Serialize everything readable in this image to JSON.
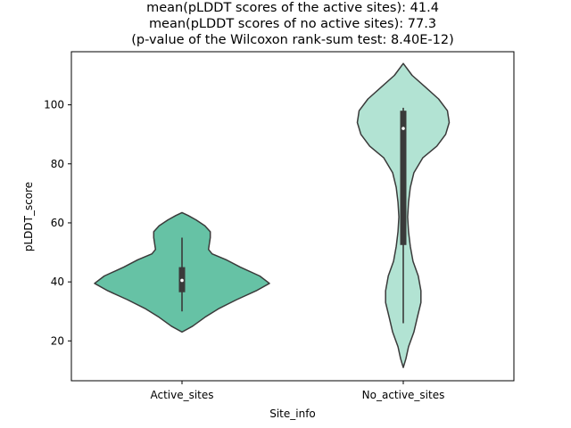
{
  "chart_data": {
    "type": "violin",
    "title_lines": [
      "mean(pLDDT scores of the active sites): 41.4",
      "mean(pLDDT scores of no active sites): 77.3",
      "(p-value of the Wilcoxon rank-sum test: 8.40E-12)"
    ],
    "xlabel": "Site_info",
    "ylabel": "pLDDT_score",
    "categories": [
      "Active_sites",
      "No_active_sites"
    ],
    "ylim": [
      6.5,
      118
    ],
    "yticks": [
      20,
      40,
      60,
      80,
      100
    ],
    "grid": false,
    "colors": {
      "Active_sites": "#66c2a5",
      "No_active_sites": "#b2e3d3",
      "edge": "#3a3a3a"
    },
    "violins": [
      {
        "name": "Active_sites",
        "min": 30,
        "q1": 36.5,
        "median": 40.5,
        "q3": 45,
        "max": 55,
        "density": [
          [
            23,
            0
          ],
          [
            25,
            0.12
          ],
          [
            28,
            0.26
          ],
          [
            31,
            0.42
          ],
          [
            34,
            0.62
          ],
          [
            37,
            0.84
          ],
          [
            39.5,
            0.99
          ],
          [
            42,
            0.88
          ],
          [
            45,
            0.66
          ],
          [
            47.5,
            0.5
          ],
          [
            49.5,
            0.34
          ],
          [
            51,
            0.3
          ],
          [
            53,
            0.31
          ],
          [
            55,
            0.32
          ],
          [
            57,
            0.32
          ],
          [
            59,
            0.26
          ],
          [
            61,
            0.16
          ],
          [
            62.5,
            0.07
          ],
          [
            63.5,
            0
          ]
        ]
      },
      {
        "name": "No_active_sites",
        "min": 26,
        "q1": 52.5,
        "median": 92,
        "q3": 98,
        "max": 99,
        "density": [
          [
            11,
            0
          ],
          [
            14,
            0.03
          ],
          [
            18,
            0.06
          ],
          [
            23,
            0.12
          ],
          [
            28,
            0.16
          ],
          [
            33,
            0.2
          ],
          [
            37,
            0.2
          ],
          [
            42,
            0.17
          ],
          [
            47,
            0.11
          ],
          [
            52,
            0.08
          ],
          [
            57,
            0.06
          ],
          [
            62,
            0.05
          ],
          [
            67,
            0.06
          ],
          [
            72,
            0.08
          ],
          [
            77,
            0.12
          ],
          [
            82,
            0.22
          ],
          [
            86,
            0.38
          ],
          [
            90,
            0.48
          ],
          [
            94,
            0.52
          ],
          [
            98,
            0.5
          ],
          [
            102,
            0.4
          ],
          [
            106,
            0.25
          ],
          [
            110,
            0.1
          ],
          [
            114,
            0
          ]
        ]
      }
    ]
  }
}
